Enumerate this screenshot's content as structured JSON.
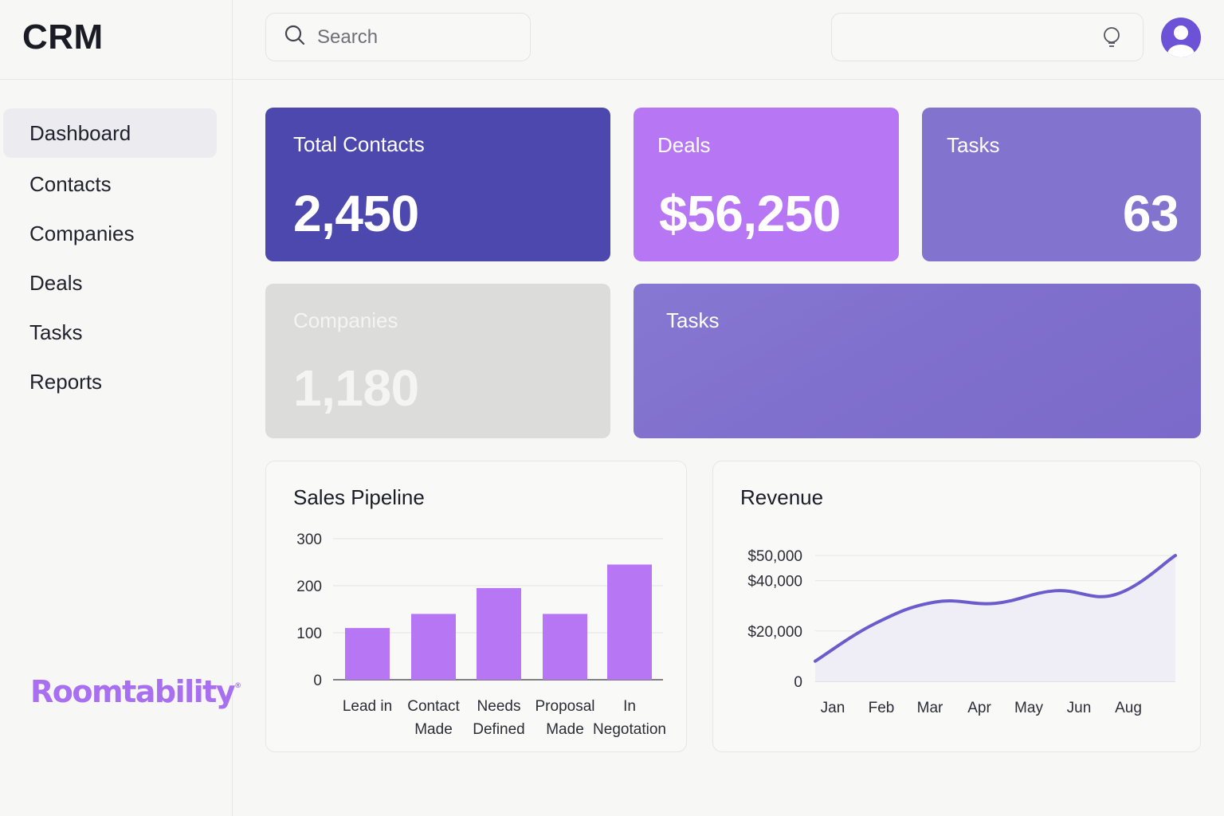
{
  "app": {
    "title": "CRM"
  },
  "sidebar": {
    "items": [
      {
        "label": "Dashboard",
        "active": true
      },
      {
        "label": "Contacts",
        "active": false
      },
      {
        "label": "Companies",
        "active": false
      },
      {
        "label": "Deals",
        "active": false
      },
      {
        "label": "Tasks",
        "active": false
      },
      {
        "label": "Reports",
        "active": false
      }
    ],
    "logo_text": "Roomtability"
  },
  "header": {
    "search_placeholder": "Search",
    "icons": [
      "search-icon",
      "lightbulb-icon",
      "user-avatar-icon"
    ]
  },
  "cards": {
    "total_contacts": {
      "label": "Total Contacts",
      "value": "2,450",
      "color": "#4c48ad"
    },
    "deals": {
      "label": "Deals",
      "value": "$56,250",
      "color": "#b777f4"
    },
    "tasks": {
      "label": "Tasks",
      "value": "63",
      "color": "#8273cf"
    },
    "companies": {
      "label": "Companies",
      "value": "1,180",
      "color": "#dcdcda"
    },
    "tasks_wide": {
      "label": "Tasks",
      "color": "#8070cd"
    }
  },
  "chart_data": [
    {
      "type": "bar",
      "title": "Sales Pipeline",
      "categories": [
        [
          "Lead in"
        ],
        [
          "Contact",
          "Made"
        ],
        [
          "Needs",
          "Defined"
        ],
        [
          "Proposal",
          "Made"
        ],
        [
          "In",
          "Negotation"
        ]
      ],
      "values": [
        110,
        140,
        195,
        140,
        245
      ],
      "yticks": [
        "0",
        "100",
        "200",
        "300"
      ],
      "ylim": [
        0,
        300
      ],
      "color": "#b777f4"
    },
    {
      "type": "area",
      "title": "Revenue",
      "x": [
        "Jan",
        "Feb",
        "Mar",
        "Apr",
        "May",
        "Jun",
        "Aug"
      ],
      "values": [
        8000,
        23000,
        31500,
        31000,
        36000,
        34500,
        50000
      ],
      "yticks": [
        "0",
        "$20,000",
        "$40,000",
        "$50,000"
      ],
      "ylim": [
        0,
        57000
      ],
      "line_color": "#6b5ccc",
      "fill_color": "#efedf6"
    }
  ]
}
